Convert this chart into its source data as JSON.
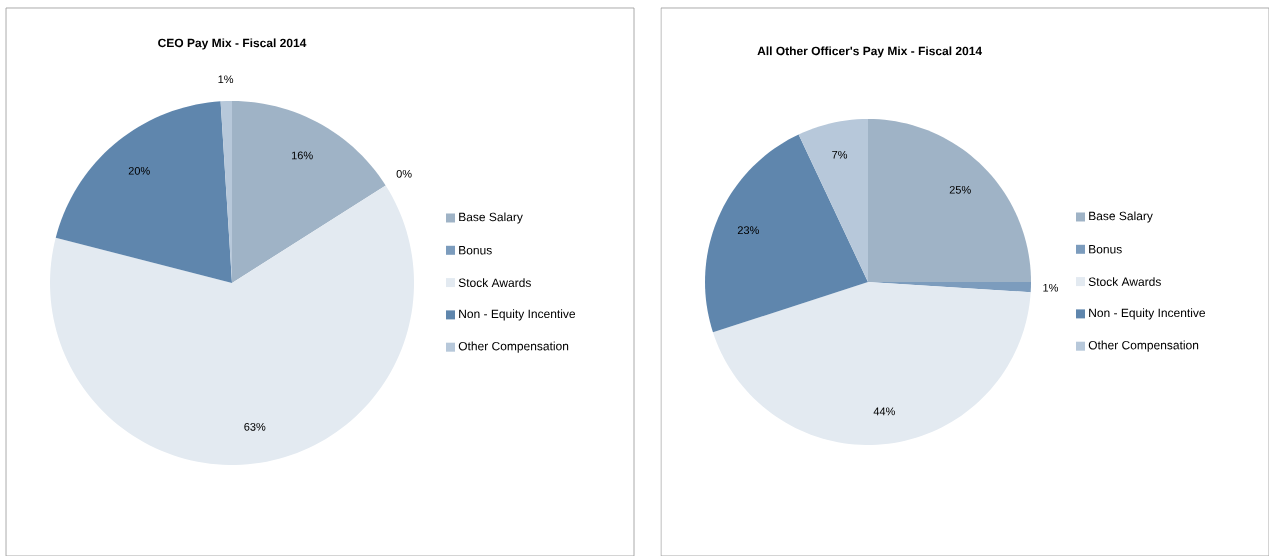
{
  "chart_data": [
    {
      "type": "pie",
      "title": "CEO Pay Mix - Fiscal 2014",
      "categories": [
        "Base Salary",
        "Bonus",
        "Stock Awards",
        "Non - Equity Incentive",
        "Other Compensation"
      ],
      "values": [
        16,
        0,
        63,
        20,
        1
      ],
      "colors": [
        "#9fb3c6",
        "#7c9cbd",
        "#e3eaf1",
        "#5f86ad",
        "#b7c8da"
      ],
      "value_labels": [
        "16%",
        "0%",
        "63%",
        "20%",
        "1%"
      ],
      "legend": "right"
    },
    {
      "type": "pie",
      "title": "All Other Officer's Pay Mix - Fiscal 2014",
      "categories": [
        "Base Salary",
        "Bonus",
        "Stock Awards",
        "Non - Equity Incentive",
        "Other Compensation"
      ],
      "values": [
        25,
        1,
        44,
        23,
        7
      ],
      "colors": [
        "#9fb3c6",
        "#7c9cbd",
        "#e3eaf1",
        "#5f86ad",
        "#b7c8da"
      ],
      "value_labels": [
        "25%",
        "1%",
        "44%",
        "23%",
        "7%"
      ],
      "legend": "right"
    }
  ]
}
